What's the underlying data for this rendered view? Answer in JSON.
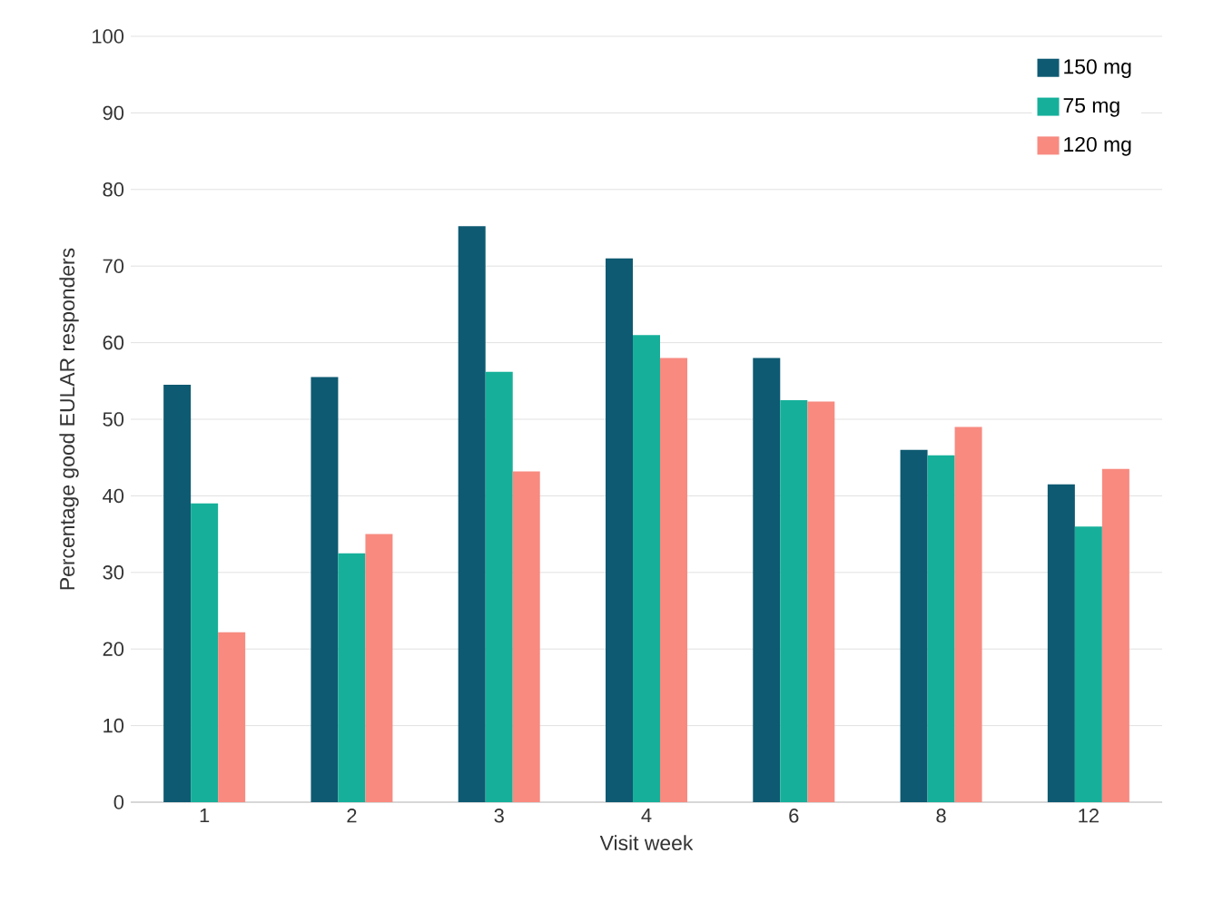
{
  "chart_data": {
    "type": "bar",
    "xlabel": "Visit week",
    "ylabel": "Percentage good EULAR responders",
    "categories": [
      "1",
      "2",
      "3",
      "4",
      "6",
      "8",
      "12"
    ],
    "series": [
      {
        "name": "150 mg",
        "color": "#0e5a72",
        "values": [
          54.5,
          55.5,
          75.2,
          71,
          58,
          46,
          41.5
        ]
      },
      {
        "name": "75 mg",
        "color": "#16b09a",
        "values": [
          39,
          32.5,
          56.2,
          61,
          52.5,
          45.3,
          36
        ]
      },
      {
        "name": "120 mg",
        "color": "#f88a80",
        "values": [
          22.2,
          35,
          43.2,
          58,
          52.3,
          49,
          43.5
        ]
      }
    ],
    "ylim": [
      0,
      100
    ],
    "yticks": [
      0,
      10,
      20,
      30,
      40,
      50,
      60,
      70,
      80,
      90,
      100
    ],
    "grid": "y",
    "legend": "top right"
  }
}
